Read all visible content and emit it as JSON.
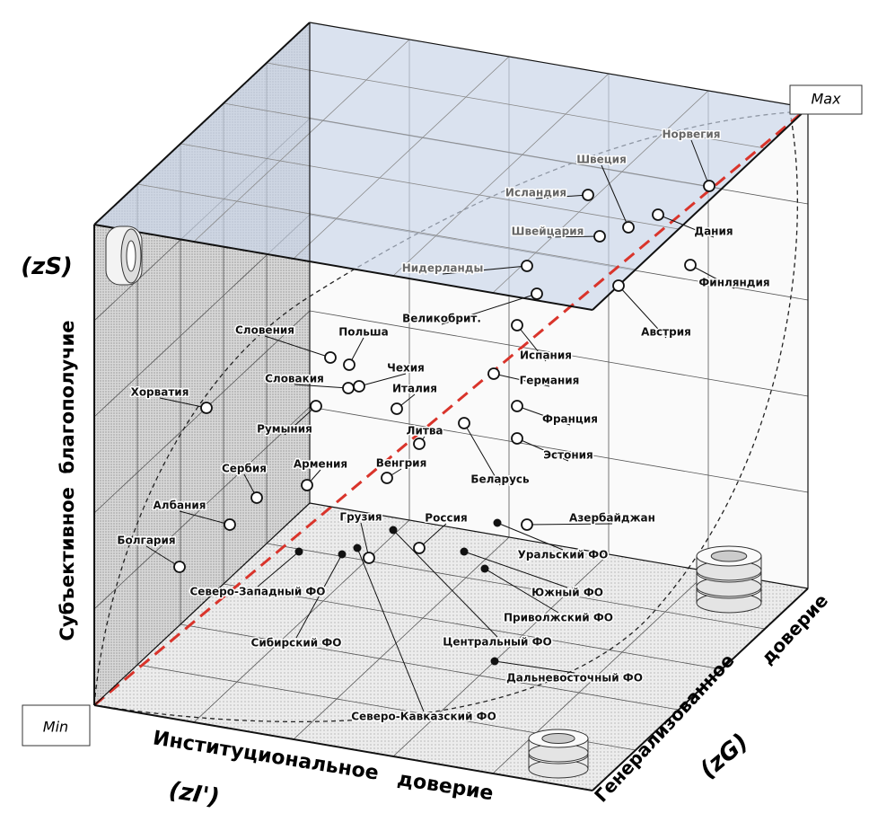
{
  "corners": {
    "min": "Min",
    "max": "Max"
  },
  "axes": {
    "vertical": {
      "symbol": "(zS)",
      "title": "Субъективное  благополучие"
    },
    "horizontal": {
      "symbol": "(zI')",
      "title_1": "Институциональное",
      "title_2": "доверие"
    },
    "depth": {
      "symbol": "(zG)",
      "title_1": "Генерализованное",
      "title_2": "доверие"
    }
  },
  "countries": [
    "Норвегия",
    "Швеция",
    "Исландия",
    "Дания",
    "Швейцария",
    "Нидерланды",
    "Великобрит.",
    "Финляндия",
    "Австрия",
    "Испания",
    "Германия",
    "Франция",
    "Эстония",
    "Литва",
    "Беларусь",
    "Венгрия",
    "Армения",
    "Италия",
    "Чехия",
    "Словакия",
    "Польша",
    "Словения",
    "Румыния",
    "Хорватия",
    "Сербия",
    "Албания",
    "Болгария",
    "Грузия",
    "Россия",
    "Азербайджан"
  ],
  "regions": [
    "Уральский ФО",
    "Южный ФО",
    "Приволжский ФО",
    "Центральный ФО",
    "Дальневосточный ФО",
    "Сибирский ФО",
    "Северо-Западный ФО",
    "Северо-Кавказский ФО"
  ]
}
